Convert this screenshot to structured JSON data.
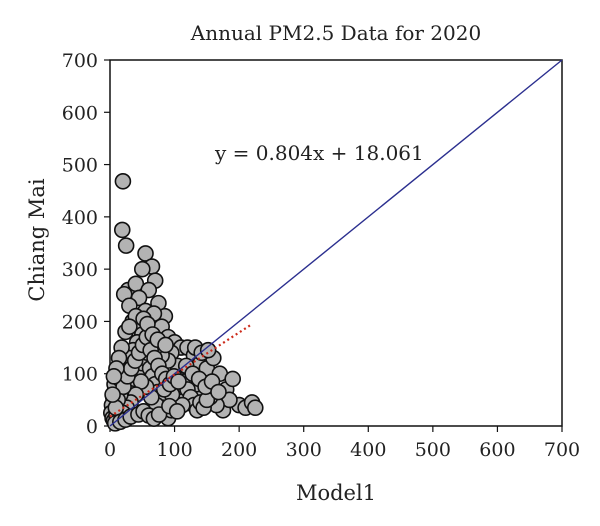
{
  "chart_data": {
    "type": "scatter",
    "title": "Annual PM2.5 Data for 2020",
    "xlabel": "Model1",
    "ylabel": "Chiang Mai",
    "xlim": [
      0,
      700
    ],
    "ylim": [
      0,
      700
    ],
    "x_ticks": [
      0,
      100,
      200,
      300,
      400,
      500,
      600,
      700
    ],
    "y_ticks": [
      0,
      100,
      200,
      300,
      400,
      500,
      600,
      700
    ],
    "grid": false,
    "legend": "none",
    "annotation": "y = 0.804x + 18.061",
    "reference_line": {
      "name": "1:1 line",
      "points": [
        [
          0,
          0
        ],
        [
          700,
          700
        ]
      ],
      "color": "#2b2f8f"
    },
    "trend_line": {
      "slope": 0.804,
      "intercept": 18.061,
      "x_range": [
        0,
        220
      ],
      "color": "#cc2a1a"
    },
    "series": [
      {
        "marker_fill": "#b3b3b3",
        "marker_stroke": "#111111",
        "points": [
          [
            20,
            468
          ],
          [
            19,
            375
          ],
          [
            25,
            345
          ],
          [
            55,
            330
          ],
          [
            65,
            305
          ],
          [
            70,
            278
          ],
          [
            50,
            300
          ],
          [
            28,
            260
          ],
          [
            40,
            272
          ],
          [
            22,
            252
          ],
          [
            60,
            260
          ],
          [
            45,
            245
          ],
          [
            75,
            235
          ],
          [
            85,
            210
          ],
          [
            30,
            230
          ],
          [
            55,
            220
          ],
          [
            68,
            215
          ],
          [
            35,
            200
          ],
          [
            48,
            190
          ],
          [
            62,
            185
          ],
          [
            80,
            190
          ],
          [
            90,
            170
          ],
          [
            100,
            160
          ],
          [
            110,
            150
          ],
          [
            95,
            140
          ],
          [
            120,
            150
          ],
          [
            130,
            135
          ],
          [
            140,
            120
          ],
          [
            150,
            110
          ],
          [
            160,
            130
          ],
          [
            170,
            100
          ],
          [
            180,
            70
          ],
          [
            190,
            90
          ],
          [
            200,
            40
          ],
          [
            210,
            35
          ],
          [
            220,
            45
          ],
          [
            225,
            35
          ],
          [
            175,
            30
          ],
          [
            185,
            50
          ],
          [
            165,
            40
          ],
          [
            155,
            55
          ],
          [
            145,
            65
          ],
          [
            135,
            80
          ],
          [
            125,
            95
          ],
          [
            115,
            105
          ],
          [
            105,
            115
          ],
          [
            90,
            125
          ],
          [
            80,
            135
          ],
          [
            70,
            150
          ],
          [
            60,
            165
          ],
          [
            50,
            175
          ],
          [
            42,
            160
          ],
          [
            36,
            145
          ],
          [
            30,
            130
          ],
          [
            24,
            115
          ],
          [
            18,
            100
          ],
          [
            12,
            85
          ],
          [
            8,
            70
          ],
          [
            5,
            55
          ],
          [
            3,
            40
          ],
          [
            2,
            25
          ],
          [
            4,
            15
          ],
          [
            6,
            10
          ],
          [
            10,
            20
          ],
          [
            14,
            30
          ],
          [
            18,
            40
          ],
          [
            22,
            50
          ],
          [
            26,
            60
          ],
          [
            30,
            70
          ],
          [
            34,
            80
          ],
          [
            38,
            90
          ],
          [
            42,
            100
          ],
          [
            46,
            110
          ],
          [
            50,
            120
          ],
          [
            54,
            130
          ],
          [
            58,
            140
          ],
          [
            62,
            110
          ],
          [
            66,
            95
          ],
          [
            70,
            80
          ],
          [
            74,
            65
          ],
          [
            78,
            50
          ],
          [
            82,
            35
          ],
          [
            86,
            25
          ],
          [
            90,
            15
          ],
          [
            95,
            30
          ],
          [
            100,
            45
          ],
          [
            105,
            60
          ],
          [
            110,
            75
          ],
          [
            115,
            85
          ],
          [
            120,
            70
          ],
          [
            125,
            55
          ],
          [
            130,
            40
          ],
          [
            135,
            30
          ],
          [
            140,
            45
          ],
          [
            145,
            35
          ],
          [
            150,
            50
          ],
          [
            112,
            40
          ],
          [
            96,
            60
          ],
          [
            84,
            70
          ],
          [
            72,
            40
          ],
          [
            64,
            55
          ],
          [
            56,
            75
          ],
          [
            48,
            85
          ],
          [
            40,
            60
          ],
          [
            32,
            45
          ],
          [
            26,
            35
          ],
          [
            20,
            25
          ],
          [
            16,
            60
          ],
          [
            12,
            50
          ],
          [
            9,
            35
          ],
          [
            7,
            80
          ],
          [
            15,
            90
          ],
          [
            21,
            75
          ],
          [
            27,
            95
          ],
          [
            33,
            110
          ],
          [
            39,
            125
          ],
          [
            45,
            140
          ],
          [
            51,
            155
          ],
          [
            57,
            170
          ],
          [
            63,
            145
          ],
          [
            69,
            130
          ],
          [
            75,
            115
          ],
          [
            81,
            100
          ],
          [
            87,
            90
          ],
          [
            93,
            80
          ],
          [
            99,
            95
          ],
          [
            106,
            85
          ],
          [
            118,
            115
          ],
          [
            128,
            100
          ],
          [
            138,
            90
          ],
          [
            148,
            75
          ],
          [
            158,
            85
          ],
          [
            168,
            65
          ],
          [
            132,
            150
          ],
          [
            142,
            140
          ],
          [
            152,
            145
          ],
          [
            40,
            210
          ],
          [
            52,
            205
          ],
          [
            58,
            195
          ],
          [
            66,
            175
          ],
          [
            74,
            165
          ],
          [
            86,
            155
          ],
          [
            24,
            180
          ],
          [
            30,
            190
          ],
          [
            18,
            150
          ],
          [
            14,
            130
          ],
          [
            10,
            110
          ],
          [
            6,
            95
          ],
          [
            4,
            60
          ],
          [
            8,
            5
          ],
          [
            16,
            8
          ],
          [
            24,
            12
          ],
          [
            32,
            18
          ],
          [
            44,
            22
          ],
          [
            52,
            28
          ],
          [
            60,
            20
          ],
          [
            68,
            14
          ],
          [
            76,
            22
          ],
          [
            92,
            38
          ],
          [
            104,
            28
          ]
        ]
      }
    ]
  }
}
